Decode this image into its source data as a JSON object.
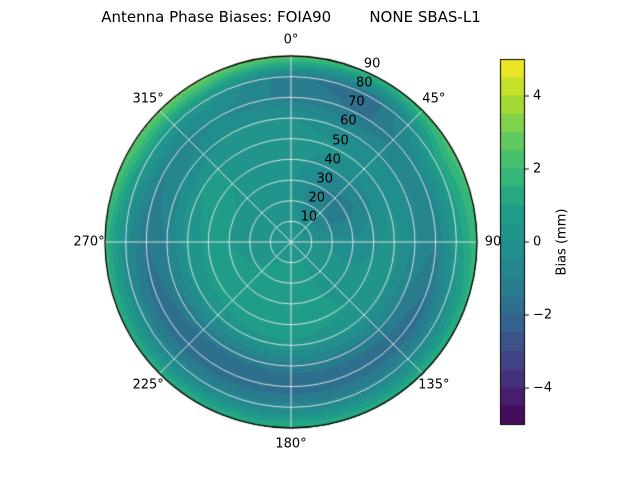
{
  "title": "Antenna Phase Biases: FOIA90        NONE SBAS-L1",
  "chart_data": {
    "type": "heatmap",
    "projection": "polar",
    "title": "Antenna Phase Biases: FOIA90        NONE SBAS-L1",
    "colormap": "viridis",
    "colormap_stops": [
      "#440154",
      "#482878",
      "#3e4a89",
      "#31688e",
      "#26828e",
      "#21918c",
      "#1fa187",
      "#3bbb75",
      "#6ece58",
      "#b5de2b",
      "#fde725"
    ],
    "grid_color": "#ebebeb",
    "vmin": -5,
    "vmax": 5,
    "contour_level_step_mm": 0.5,
    "rlabel_angle_deg": 22.5,
    "angular_tick_labels": [
      {
        "deg": 0,
        "label": "0°"
      },
      {
        "deg": 45,
        "label": "45°"
      },
      {
        "deg": 90,
        "label": "90"
      },
      {
        "deg": 135,
        "label": "135°"
      },
      {
        "deg": 180,
        "label": "180°"
      },
      {
        "deg": 225,
        "label": "225°"
      },
      {
        "deg": 270,
        "label": "270°"
      },
      {
        "deg": 315,
        "label": "315°"
      }
    ],
    "radial_tick_labels": [
      {
        "r": 10,
        "label": "10"
      },
      {
        "r": 20,
        "label": "20"
      },
      {
        "r": 30,
        "label": "30"
      },
      {
        "r": 40,
        "label": "40"
      },
      {
        "r": 50,
        "label": "50"
      },
      {
        "r": 60,
        "label": "60"
      },
      {
        "r": 70,
        "label": "70"
      },
      {
        "r": 80,
        "label": "80"
      },
      {
        "r": 90,
        "label": "90"
      }
    ],
    "azimuths_deg": [
      0,
      30,
      60,
      90,
      120,
      150,
      180,
      210,
      240,
      270,
      300,
      330,
      360
    ],
    "zenith_deg": [
      0,
      10,
      20,
      30,
      40,
      50,
      60,
      70,
      80,
      90
    ],
    "bias_mm": [
      [
        0.4,
        0.4,
        0.4,
        0.4,
        0.4,
        0.4,
        0.4,
        0.4,
        0.4,
        0.4,
        0.4,
        0.4,
        0.4
      ],
      [
        0.3,
        0.0,
        -0.3,
        0.2,
        0.4,
        0.5,
        0.5,
        0.5,
        0.4,
        0.4,
        0.4,
        0.4,
        0.3
      ],
      [
        0.1,
        -0.8,
        -1.1,
        -0.2,
        0.3,
        0.5,
        0.6,
        0.6,
        0.5,
        0.4,
        0.4,
        0.3,
        0.1
      ],
      [
        0.1,
        -1.0,
        -1.3,
        -0.4,
        0.2,
        0.5,
        0.7,
        0.7,
        0.6,
        0.5,
        0.5,
        0.3,
        0.1
      ],
      [
        0.3,
        -0.5,
        -0.7,
        -0.1,
        0.3,
        0.6,
        0.8,
        0.8,
        0.7,
        0.6,
        0.6,
        0.4,
        0.3
      ],
      [
        0.4,
        0.1,
        0.0,
        0.2,
        0.1,
        0.2,
        0.4,
        0.3,
        0.2,
        0.3,
        0.5,
        0.5,
        0.4
      ],
      [
        0.0,
        -0.6,
        -0.5,
        -0.6,
        -1.1,
        -1.3,
        -1.3,
        -1.4,
        -1.3,
        -1.0,
        -0.5,
        0.1,
        0.0
      ],
      [
        -1.2,
        -1.6,
        -0.6,
        -1.0,
        -1.8,
        -1.9,
        -1.9,
        -2.0,
        -1.9,
        -1.5,
        -1.0,
        -0.5,
        -1.2
      ],
      [
        -1.4,
        -1.8,
        0.9,
        0.6,
        -0.5,
        -0.8,
        -0.7,
        -0.8,
        -0.7,
        -0.4,
        0.6,
        0.2,
        -1.4
      ],
      [
        2.6,
        1.8,
        2.4,
        2.0,
        1.7,
        1.6,
        1.7,
        1.6,
        1.6,
        1.8,
        2.6,
        2.9,
        2.6
      ]
    ],
    "colorbar": {
      "label": "Bias (mm)",
      "tick_values": [
        4,
        2,
        0,
        -2,
        -4
      ],
      "tick_labels": [
        "4",
        "2",
        "0",
        "−2",
        "−4"
      ]
    }
  }
}
